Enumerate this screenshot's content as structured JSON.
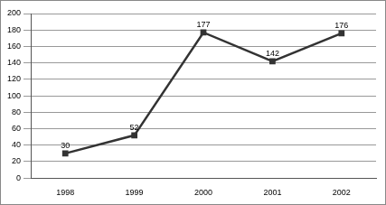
{
  "chart_data": {
    "type": "line",
    "categories": [
      "1998",
      "1999",
      "2000",
      "2001",
      "2002"
    ],
    "values": [
      30,
      52,
      177,
      142,
      176
    ],
    "color": "#333333",
    "marker": "square",
    "line_style": "solid",
    "ylim": [
      0,
      200
    ],
    "yticks": [
      0,
      20,
      40,
      60,
      80,
      100,
      120,
      140,
      160,
      180,
      200
    ],
    "grid": true,
    "data_labels": true
  }
}
